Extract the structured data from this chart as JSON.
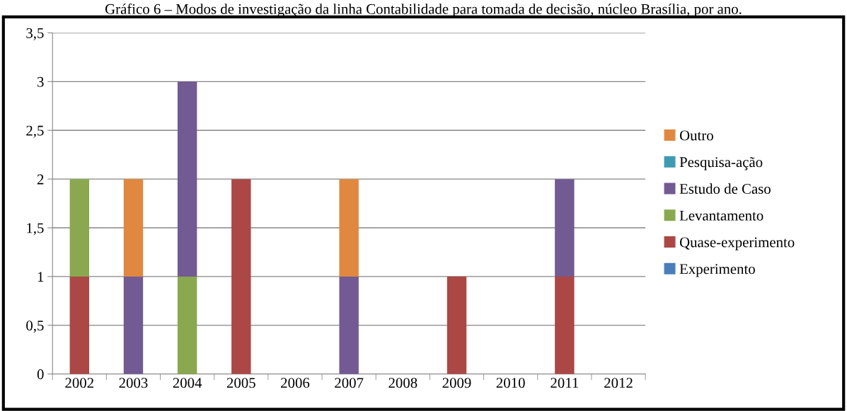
{
  "chart_data": {
    "type": "bar",
    "stacked": true,
    "title": "Gráfico 6 – Modos de investigação da linha Contabilidade para tomada de decisão, núcleo Brasília, por ano.",
    "categories": [
      "2002",
      "2003",
      "2004",
      "2005",
      "2006",
      "2007",
      "2008",
      "2009",
      "2010",
      "2011",
      "2012"
    ],
    "series": [
      {
        "name": "Experimento",
        "color": "#4a7ebb",
        "values": [
          0,
          0,
          0,
          0,
          0,
          0,
          0,
          0,
          0,
          0,
          0
        ]
      },
      {
        "name": "Quase-experimento",
        "color": "#ab4745",
        "values": [
          1,
          0,
          0,
          2,
          0,
          0,
          0,
          1,
          0,
          1,
          0
        ]
      },
      {
        "name": "Levantamento",
        "color": "#8aa84f",
        "values": [
          1,
          0,
          1,
          0,
          0,
          0,
          0,
          0,
          0,
          0,
          0
        ]
      },
      {
        "name": "Estudo de Caso",
        "color": "#725a92",
        "values": [
          0,
          1,
          2,
          0,
          0,
          1,
          0,
          0,
          0,
          1,
          0
        ]
      },
      {
        "name": "Pesquisa-ação",
        "color": "#3e9bb2",
        "values": [
          0,
          0,
          0,
          0,
          0,
          0,
          0,
          0,
          0,
          0,
          0
        ]
      },
      {
        "name": "Outro",
        "color": "#e0883f",
        "values": [
          0,
          1,
          0,
          0,
          0,
          1,
          0,
          0,
          0,
          0,
          0
        ]
      }
    ],
    "ylim": [
      0,
      3.5
    ],
    "yticks": [
      0,
      {
        "value": 0.5,
        "label": "0,5"
      },
      1,
      {
        "value": 1.5,
        "label": "1,5"
      },
      2,
      {
        "value": 2.5,
        "label": "2,5"
      },
      3,
      {
        "value": 3.5,
        "label": "3,5"
      }
    ],
    "grid": "y",
    "legend": "right"
  }
}
